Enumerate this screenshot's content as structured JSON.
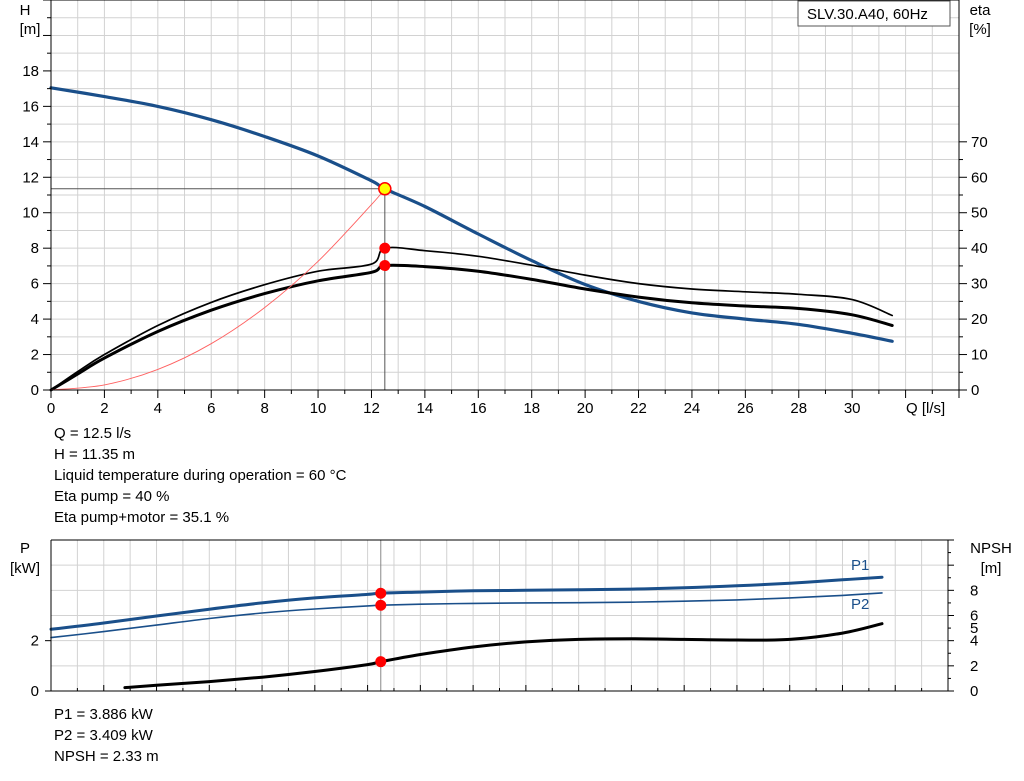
{
  "chart_data": [
    {
      "type": "line",
      "title": "SLV.30.A40, 60Hz",
      "xlabel": "Q [l/s]",
      "ylabel_left": [
        "H",
        "[m]"
      ],
      "ylabel_right": [
        "eta",
        "[%]"
      ],
      "xlim": [
        0,
        34
      ],
      "ylim_left": [
        0,
        22
      ],
      "ylim_right": [
        0,
        110
      ],
      "x_ticks": [
        0,
        2,
        4,
        6,
        8,
        10,
        12,
        14,
        16,
        18,
        20,
        22,
        24,
        26,
        28,
        30
      ],
      "y_ticks_left": [
        0,
        2,
        4,
        6,
        8,
        10,
        12,
        14,
        16,
        18
      ],
      "y_ticks_right": [
        0,
        10,
        20,
        30,
        40,
        50,
        60,
        70
      ],
      "grid": true,
      "series": [
        {
          "name": "",
          "axis": "left",
          "color": "#1a4f8a",
          "width": 3.2,
          "points": [
            [
              0,
              17.05
            ],
            [
              2,
              16.55
            ],
            [
              4,
              16.0
            ],
            [
              6,
              15.25
            ],
            [
              8,
              14.3
            ],
            [
              10,
              13.2
            ],
            [
              12,
              11.8
            ],
            [
              12.5,
              11.35
            ],
            [
              14,
              10.35
            ],
            [
              16,
              8.8
            ],
            [
              18,
              7.3
            ],
            [
              20,
              5.95
            ],
            [
              22,
              5.0
            ],
            [
              24,
              4.35
            ],
            [
              26,
              4.0
            ],
            [
              28,
              3.7
            ],
            [
              30,
              3.2
            ],
            [
              31.5,
              2.75
            ]
          ]
        },
        {
          "name": "",
          "axis": "right",
          "color": "#000000",
          "width": 1.7,
          "points": [
            [
              0,
              0
            ],
            [
              1,
              5.2
            ],
            [
              2,
              10
            ],
            [
              4,
              18.2
            ],
            [
              6,
              24.7
            ],
            [
              8,
              29.7
            ],
            [
              10,
              33.5
            ],
            [
              12,
              35.5
            ],
            [
              12.5,
              40
            ],
            [
              14,
              39.3
            ],
            [
              16,
              37.7
            ],
            [
              18,
              35.2
            ],
            [
              20,
              32.4
            ],
            [
              22,
              30.0
            ],
            [
              24,
              28.5
            ],
            [
              26,
              27.7
            ],
            [
              28,
              27.0
            ],
            [
              30,
              25.5
            ],
            [
              31.5,
              21.0
            ]
          ]
        },
        {
          "name": "",
          "axis": "right",
          "color": "#000000",
          "width": 3.0,
          "points": [
            [
              0,
              0
            ],
            [
              1,
              4.5
            ],
            [
              2,
              9
            ],
            [
              4,
              16.5
            ],
            [
              6,
              22.5
            ],
            [
              8,
              27.2
            ],
            [
              10,
              30.8
            ],
            [
              12,
              33.2
            ],
            [
              12.5,
              35.1
            ],
            [
              14,
              34.8
            ],
            [
              16,
              33.5
            ],
            [
              18,
              31.2
            ],
            [
              20,
              28.5
            ],
            [
              22,
              26.2
            ],
            [
              24,
              24.6
            ],
            [
              26,
              23.7
            ],
            [
              28,
              23.0
            ],
            [
              30,
              21.2
            ],
            [
              31.5,
              18.2
            ]
          ]
        },
        {
          "name": "",
          "axis": "left",
          "color": "#ff6060",
          "width": 0.9,
          "points": [
            [
              0,
              0
            ],
            [
              2,
              0.29
            ],
            [
              4,
              1.16
            ],
            [
              6,
              2.61
            ],
            [
              8,
              4.65
            ],
            [
              10,
              7.26
            ],
            [
              12,
              10.46
            ],
            [
              12.5,
              11.35
            ]
          ]
        }
      ],
      "duty_point": {
        "x": 12.5,
        "h": 11.35,
        "eta_pump": 40,
        "eta_total": 35.1
      }
    },
    {
      "type": "line",
      "xlabel": "",
      "ylabel_left": [
        "P",
        "[kW]"
      ],
      "ylabel_right": [
        "NPSH",
        "[m]"
      ],
      "xlim": [
        0,
        34
      ],
      "ylim_left": [
        0,
        6
      ],
      "ylim_right": [
        0,
        12
      ],
      "x_ticks": [
        0,
        2,
        4,
        6,
        8,
        10,
        12,
        14,
        16,
        18,
        20,
        22,
        24,
        26,
        28,
        30
      ],
      "y_ticks_left": [
        0,
        2
      ],
      "y_ticks_right": [
        0,
        2,
        4,
        5,
        6,
        8
      ],
      "grid": true,
      "series": [
        {
          "name": "P1",
          "axis": "left",
          "color": "#1a4f8a",
          "width": 3.0,
          "points": [
            [
              0,
              2.45
            ],
            [
              2,
              2.7
            ],
            [
              4,
              2.98
            ],
            [
              6,
              3.25
            ],
            [
              8,
              3.5
            ],
            [
              10,
              3.7
            ],
            [
              12,
              3.84
            ],
            [
              12.5,
              3.886
            ],
            [
              14,
              3.93
            ],
            [
              16,
              3.98
            ],
            [
              18,
              4.0
            ],
            [
              20,
              4.02
            ],
            [
              22,
              4.05
            ],
            [
              24,
              4.1
            ],
            [
              26,
              4.18
            ],
            [
              28,
              4.28
            ],
            [
              30,
              4.42
            ],
            [
              31.5,
              4.52
            ]
          ]
        },
        {
          "name": "P2",
          "axis": "left",
          "color": "#1a4f8a",
          "width": 1.6,
          "points": [
            [
              0,
              2.12
            ],
            [
              2,
              2.36
            ],
            [
              4,
              2.62
            ],
            [
              6,
              2.88
            ],
            [
              8,
              3.1
            ],
            [
              10,
              3.26
            ],
            [
              12,
              3.38
            ],
            [
              12.5,
              3.409
            ],
            [
              14,
              3.45
            ],
            [
              16,
              3.48
            ],
            [
              18,
              3.5
            ],
            [
              20,
              3.51
            ],
            [
              22,
              3.53
            ],
            [
              24,
              3.57
            ],
            [
              26,
              3.62
            ],
            [
              28,
              3.7
            ],
            [
              30,
              3.8
            ],
            [
              31.5,
              3.9
            ]
          ]
        },
        {
          "name": "",
          "axis": "right",
          "color": "#000000",
          "width": 3.0,
          "points": [
            [
              2.8,
              0.27
            ],
            [
              4,
              0.45
            ],
            [
              6,
              0.75
            ],
            [
              8,
              1.1
            ],
            [
              10,
              1.55
            ],
            [
              12,
              2.1
            ],
            [
              12.5,
              2.33
            ],
            [
              14,
              2.9
            ],
            [
              16,
              3.5
            ],
            [
              18,
              3.9
            ],
            [
              20,
              4.1
            ],
            [
              22,
              4.15
            ],
            [
              24,
              4.1
            ],
            [
              26,
              4.05
            ],
            [
              28,
              4.1
            ],
            [
              30,
              4.6
            ],
            [
              31.5,
              5.35
            ]
          ]
        }
      ],
      "duty_point": {
        "x": 12.5,
        "p1": 3.886,
        "p2": 3.409,
        "npsh": 2.33
      }
    }
  ],
  "results": {
    "q": "Q = 12.5 l/s",
    "h": "H = 11.35 m",
    "temp": "Liquid temperature during operation = 60 °C",
    "eta_pump": "Eta pump = 40 %",
    "eta_total": "Eta pump+motor = 35.1 %"
  },
  "power_results": {
    "p1": "P1 = 3.886 kW",
    "p2": "P2 = 3.409 kW",
    "npsh": "NPSH = 2.33 m"
  },
  "colors": {
    "grid": "#d2d2d2",
    "axis": "#000000",
    "duty_marker": "#ff0000",
    "duty_marker_main": "#ffff00",
    "pump_curve": "#1a4f8a"
  }
}
